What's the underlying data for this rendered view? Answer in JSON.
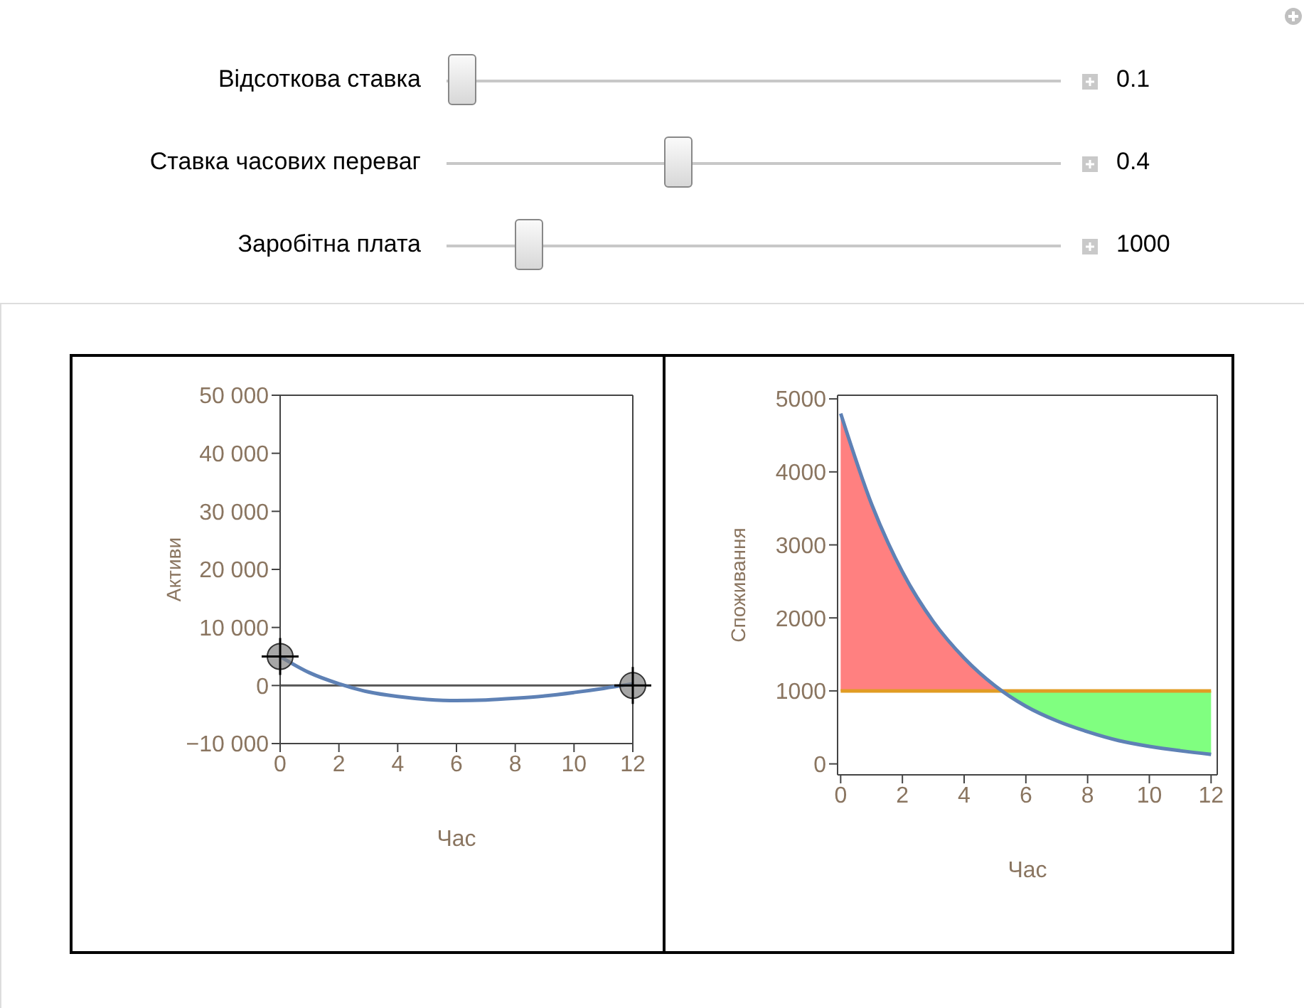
{
  "chart_data": [
    {
      "type": "other",
      "annotations": [
        "Відсоткова ставка",
        "0.1",
        "Ставка часових переваг",
        "0.4",
        "Заробітна плата",
        "1000"
      ]
    },
    {
      "type": "line",
      "xlabel": "Час",
      "ylabel": "Активи",
      "xlim": [
        0,
        12
      ],
      "ylim": [
        -10000,
        50000
      ],
      "xticks": [
        0,
        2,
        4,
        6,
        8,
        10,
        12
      ],
      "yticks": [
        {
          "value": -10000,
          "label": "−10 000"
        },
        0,
        {
          "value": 10000,
          "label": "10 000"
        },
        {
          "value": 20000,
          "label": "20 000"
        },
        {
          "value": 30000,
          "label": "30 000"
        },
        {
          "value": 40000,
          "label": "40 000"
        },
        {
          "value": 50000,
          "label": "50 000"
        }
      ],
      "series": [
        {
          "type": "line",
          "color": "#5e81b5",
          "x": [
            0,
            1,
            2,
            3,
            4,
            5,
            6,
            7,
            8,
            9,
            10,
            11,
            12
          ],
          "values": [
            5000,
            2200,
            300,
            -1100,
            -1900,
            -2400,
            -2600,
            -2500,
            -2200,
            -1800,
            -1200,
            -500,
            300
          ]
        },
        {
          "type": "scatter",
          "color": "#808080",
          "marker": "circle",
          "x": [
            0,
            12
          ],
          "values": [
            5000,
            0
          ]
        }
      ],
      "ref_lines": [
        {
          "axis": "y",
          "value": 0,
          "color": "#555555"
        }
      ]
    },
    {
      "type": "line",
      "xlabel": "Час",
      "ylabel": "Споживання",
      "xlim": [
        -0.1,
        12.2
      ],
      "ylim": [
        -150,
        5050
      ],
      "xticks": [
        0,
        2,
        4,
        6,
        8,
        10,
        12
      ],
      "yticks": [
        0,
        1000,
        2000,
        3000,
        4000,
        5000
      ],
      "series": [
        {
          "type": "area",
          "color": "#ff8080",
          "x": [
            0,
            1,
            2,
            3,
            4,
            5,
            5.23
          ],
          "values": [
            4800,
            3560,
            2630,
            1950,
            1450,
            1070,
            1000
          ]
        },
        {
          "type": "area",
          "color": "#80ff80",
          "x": [
            5.23,
            6,
            7,
            8,
            9,
            10,
            11,
            12
          ],
          "values": [
            1000,
            1000,
            1000,
            1000,
            1000,
            1000,
            1000,
            1000
          ]
        },
        {
          "type": "line",
          "color": "#e19c24",
          "x": [
            0,
            12
          ],
          "values": [
            1000,
            1000
          ]
        },
        {
          "type": "line",
          "color": "#5e81b5",
          "x": [
            0,
            1,
            2,
            3,
            4,
            5,
            6,
            7,
            8,
            9,
            10,
            11,
            12
          ],
          "values": [
            4800,
            3560,
            2630,
            1950,
            1450,
            1070,
            790,
            590,
            440,
            320,
            240,
            180,
            130
          ]
        }
      ]
    }
  ]
}
